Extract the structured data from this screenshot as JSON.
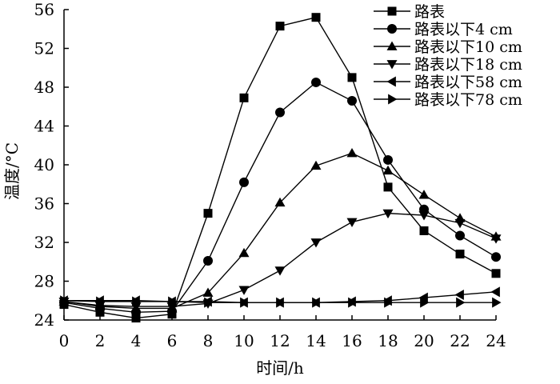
{
  "chart_data": {
    "type": "line",
    "title": "",
    "xlabel": "时间/h",
    "ylabel": "温度/°C",
    "x": [
      0,
      2,
      4,
      6,
      8,
      10,
      12,
      14,
      16,
      18,
      20,
      22,
      24
    ],
    "xlim": [
      0,
      24
    ],
    "ylim": [
      24,
      56
    ],
    "xticks": [
      0,
      2,
      4,
      6,
      8,
      10,
      12,
      14,
      16,
      18,
      20,
      22,
      24
    ],
    "yticks": [
      24,
      28,
      32,
      36,
      40,
      44,
      48,
      52,
      56
    ],
    "grid": false,
    "legend_position": "top-right",
    "series": [
      {
        "name": "路表",
        "marker": "square",
        "values": [
          25.6,
          24.8,
          24.2,
          24.6,
          35.0,
          46.9,
          54.3,
          55.2,
          49.0,
          37.7,
          33.2,
          30.8,
          28.8
        ]
      },
      {
        "name": "路表以下4 cm",
        "marker": "circle",
        "values": [
          25.8,
          25.2,
          24.8,
          24.9,
          30.1,
          38.2,
          45.4,
          48.5,
          46.6,
          40.5,
          35.4,
          32.7,
          30.5
        ]
      },
      {
        "name": "路表以下10 cm",
        "marker": "triangle-up",
        "values": [
          25.9,
          25.4,
          25.2,
          25.2,
          26.8,
          30.9,
          36.1,
          39.9,
          41.2,
          39.4,
          36.9,
          34.5,
          32.6
        ]
      },
      {
        "name": "路表以下18 cm",
        "marker": "triangle-down",
        "values": [
          25.9,
          25.5,
          25.4,
          25.4,
          25.7,
          27.1,
          29.1,
          32.0,
          34.1,
          35.0,
          34.8,
          34.0,
          32.4
        ]
      },
      {
        "name": "路表以下58 cm",
        "marker": "triangle-left",
        "values": [
          26.0,
          26.0,
          26.0,
          25.9,
          25.9,
          25.8,
          25.8,
          25.8,
          25.9,
          26.0,
          26.3,
          26.6,
          26.9
        ]
      },
      {
        "name": "路表以下78 cm",
        "marker": "triangle-right",
        "values": [
          26.0,
          25.9,
          25.9,
          25.9,
          25.8,
          25.8,
          25.8,
          25.8,
          25.8,
          25.8,
          25.8,
          25.8,
          25.8
        ]
      }
    ]
  }
}
